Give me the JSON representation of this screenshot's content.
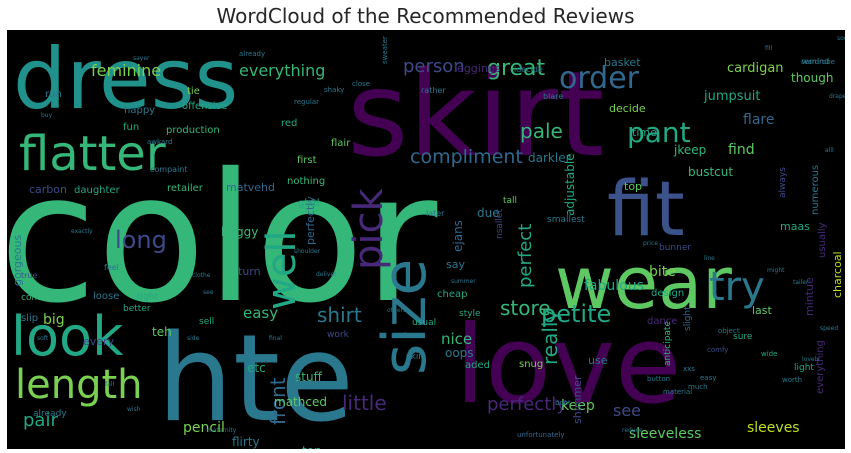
{
  "chart_data": {
    "type": "wordcloud",
    "title": "WordCloud of the Recommended Reviews",
    "background": "#000000",
    "palette": "viridis",
    "words": [
      {
        "text": "color",
        "color": "#35b779"
      },
      {
        "text": "skirt",
        "color": "#440154"
      },
      {
        "text": "hte",
        "color": "#2a788e"
      },
      {
        "text": "love",
        "color": "#440154"
      },
      {
        "text": "dress",
        "color": "#21918c"
      },
      {
        "text": "fit",
        "color": "#3b528b"
      },
      {
        "text": "wear",
        "color": "#5ec962"
      },
      {
        "text": "flatter",
        "color": "#35b779"
      },
      {
        "text": "look",
        "color": "#22a884"
      },
      {
        "text": "length",
        "color": "#7ad151"
      },
      {
        "text": "size",
        "color": "#2a788e"
      },
      {
        "text": "pick",
        "color": "#482878"
      },
      {
        "text": "try",
        "color": "#2a788e"
      },
      {
        "text": "well",
        "color": "#22a884"
      },
      {
        "text": "order",
        "color": "#31688e"
      },
      {
        "text": "pant",
        "color": "#22a884"
      },
      {
        "text": "long",
        "color": "#3e4a89"
      },
      {
        "text": "petite",
        "color": "#22a884"
      },
      {
        "text": "pale",
        "color": "#35b779"
      },
      {
        "text": "great",
        "color": "#35b779"
      },
      {
        "text": "compliment",
        "color": "#31688e"
      },
      {
        "text": "front",
        "color": "#31688e"
      },
      {
        "text": "shirt",
        "color": "#2a788e"
      },
      {
        "text": "store",
        "color": "#35b779"
      },
      {
        "text": "really",
        "color": "#22a884"
      },
      {
        "text": "little",
        "color": "#482878"
      },
      {
        "text": "perfectly",
        "color": "#482878"
      },
      {
        "text": "pair",
        "color": "#22a884"
      },
      {
        "text": "person",
        "color": "#3e4a89"
      },
      {
        "text": "everything",
        "color": "#35b779"
      },
      {
        "text": "feminine",
        "color": "#7ad151"
      },
      {
        "text": "perfect",
        "color": "#22a884"
      },
      {
        "text": "nice",
        "color": "#35b779"
      },
      {
        "text": "easy",
        "color": "#35b779"
      },
      {
        "text": "see",
        "color": "#3e4a89"
      },
      {
        "text": "keep",
        "color": "#5ec962"
      },
      {
        "text": "pencil",
        "color": "#7ad151"
      },
      {
        "text": "big",
        "color": "#7ad151"
      },
      {
        "text": "sleeves",
        "color": "#bddf26"
      },
      {
        "text": "sleeveless",
        "color": "#5ec962"
      },
      {
        "text": "fabulous",
        "color": "#22a884"
      },
      {
        "text": "bite",
        "color": "#7ad151"
      },
      {
        "text": "find",
        "color": "#5ec962"
      },
      {
        "text": "flare",
        "color": "#31688e"
      },
      {
        "text": "jumpsuit",
        "color": "#22a884"
      },
      {
        "text": "cardigan",
        "color": "#7ad151"
      },
      {
        "text": "though",
        "color": "#5ec962"
      },
      {
        "text": "bustcut",
        "color": "#35b779"
      },
      {
        "text": "darkler",
        "color": "#2a788e"
      },
      {
        "text": "jkeep",
        "color": "#35b779"
      },
      {
        "text": "adjustable",
        "color": "#22a884"
      },
      {
        "text": "decide",
        "color": "#7ad151"
      },
      {
        "text": "basket",
        "color": "#2a788e"
      },
      {
        "text": "leggings",
        "color": "#482878"
      },
      {
        "text": "time",
        "color": "#22a884"
      },
      {
        "text": "top",
        "color": "#5ec962"
      },
      {
        "text": "maas",
        "color": "#22a884"
      },
      {
        "text": "last",
        "color": "#5ec962"
      },
      {
        "text": "charcoal",
        "color": "#bddf26"
      },
      {
        "text": "mintue",
        "color": "#482878"
      },
      {
        "text": "everything",
        "color": "#482878"
      },
      {
        "text": "shimmer",
        "color": "#3e4a89"
      },
      {
        "text": "use",
        "color": "#2a788e"
      },
      {
        "text": "aded",
        "color": "#22a884"
      },
      {
        "text": "snug",
        "color": "#7ad151"
      },
      {
        "text": "oops",
        "color": "#2a788e"
      },
      {
        "text": "stuff",
        "color": "#35b779"
      },
      {
        "text": "etc",
        "color": "#22a884"
      },
      {
        "text": "mathced",
        "color": "#5ec962"
      },
      {
        "text": "flirty",
        "color": "#2a788e"
      },
      {
        "text": "ton",
        "color": "#22a884"
      },
      {
        "text": "teh",
        "color": "#5ec962"
      },
      {
        "text": "every",
        "color": "#3e4a89"
      },
      {
        "text": "baggy",
        "color": "#35b779"
      },
      {
        "text": "turn",
        "color": "#3e4a89"
      },
      {
        "text": "gorgeous",
        "color": "#2a788e"
      },
      {
        "text": "carbon",
        "color": "#3e4a89"
      },
      {
        "text": "matvehd",
        "color": "#31688e"
      },
      {
        "text": "daughter",
        "color": "#22a884"
      },
      {
        "text": "retailer",
        "color": "#35b779"
      },
      {
        "text": "nothing",
        "color": "#35b779"
      },
      {
        "text": "fun",
        "color": "#22a884"
      },
      {
        "text": "happy",
        "color": "#2a788e"
      },
      {
        "text": "production",
        "color": "#35b779"
      },
      {
        "text": "offensive",
        "color": "#22a884"
      },
      {
        "text": "red",
        "color": "#22a884"
      },
      {
        "text": "run",
        "color": "#2a788e"
      },
      {
        "text": "tie",
        "color": "#7ad151"
      },
      {
        "text": "first",
        "color": "#5ec962"
      },
      {
        "text": "glad",
        "color": "#22a884"
      },
      {
        "text": "flair",
        "color": "#5ec962"
      },
      {
        "text": "due",
        "color": "#2a788e"
      },
      {
        "text": "perfectly",
        "color": "#31688e"
      },
      {
        "text": "ejans",
        "color": "#31688e"
      },
      {
        "text": "say",
        "color": "#2a788e"
      },
      {
        "text": "cheap",
        "color": "#22a884"
      },
      {
        "text": "dance",
        "color": "#482878"
      },
      {
        "text": "design",
        "color": "#22a884"
      },
      {
        "text": "usually",
        "color": "#482878"
      },
      {
        "text": "numerous",
        "color": "#2a788e"
      },
      {
        "text": "loose",
        "color": "#2a788e"
      },
      {
        "text": "slip",
        "color": "#2a788e"
      },
      {
        "text": "combo",
        "color": "#35b779"
      },
      {
        "text": "sell",
        "color": "#22a884"
      },
      {
        "text": "work",
        "color": "#3e4a89"
      },
      {
        "text": "usual",
        "color": "#22a884"
      },
      {
        "text": "style",
        "color": "#22a884"
      },
      {
        "text": "skin",
        "color": "#2a788e"
      },
      {
        "text": "light",
        "color": "#22a884"
      },
      {
        "text": "tall",
        "color": "#5ec962"
      },
      {
        "text": "always",
        "color": "#3e4a89"
      },
      {
        "text": "smallest",
        "color": "#2a788e"
      },
      {
        "text": "later",
        "color": "#2a788e"
      },
      {
        "text": "anticipate",
        "color": "#35b779"
      },
      {
        "text": "slight",
        "color": "#31688e"
      },
      {
        "text": "sure",
        "color": "#22a884"
      },
      {
        "text": "make",
        "color": "#2a788e"
      },
      {
        "text": "better",
        "color": "#22a884"
      },
      {
        "text": "tight",
        "color": "#22a884"
      },
      {
        "text": "already",
        "color": "#2a788e"
      },
      {
        "text": "feel",
        "color": "#2a788e"
      },
      {
        "text": "true",
        "color": "#3e4a89"
      },
      {
        "text": "remind",
        "color": "#2a788e"
      },
      {
        "text": "blare",
        "color": "#2a788e"
      },
      {
        "text": "rather",
        "color": "#2a788e"
      },
      {
        "text": "idecide",
        "color": "#2a788e"
      },
      {
        "text": "worth",
        "color": "#2a788e"
      },
      {
        "text": "wardrobe",
        "color": "#2a788e"
      },
      {
        "text": "unfortunately",
        "color": "#31688e"
      },
      {
        "text": "button",
        "color": "#2a788e"
      },
      {
        "text": "material",
        "color": "#2a788e"
      },
      {
        "text": "xxs",
        "color": "#2a788e"
      },
      {
        "text": "much",
        "color": "#2a788e"
      },
      {
        "text": "wide",
        "color": "#22a884"
      },
      {
        "text": "comfy",
        "color": "#3e4a89"
      },
      {
        "text": "object",
        "color": "#2a788e"
      },
      {
        "text": "boot",
        "color": "#2a788e"
      },
      {
        "text": "easy",
        "color": "#2a788e"
      },
      {
        "text": "sweater",
        "color": "#2a788e"
      },
      {
        "text": "close",
        "color": "#2a788e"
      },
      {
        "text": "shaky",
        "color": "#2a788e"
      },
      {
        "text": "bunner",
        "color": "#3e4a89"
      },
      {
        "text": "nsallet",
        "color": "#3e4a89"
      },
      {
        "text": "compaint",
        "color": "#2a788e"
      },
      {
        "text": "awkard",
        "color": "#2a788e"
      },
      {
        "text": "regular",
        "color": "#2a788e"
      },
      {
        "text": "already",
        "color": "#2a788e"
      },
      {
        "text": "sayer",
        "color": "#2a788e"
      },
      {
        "text": "buy",
        "color": "#2a788e"
      },
      {
        "text": "line",
        "color": "#2a788e"
      },
      {
        "text": "tailer",
        "color": "#2a788e"
      },
      {
        "text": "price",
        "color": "#2a788e"
      },
      {
        "text": "clothe",
        "color": "#2a788e"
      },
      {
        "text": "shoulder",
        "color": "#2a788e"
      },
      {
        "text": "soft",
        "color": "#2a788e"
      },
      {
        "text": "side",
        "color": "#2a788e"
      },
      {
        "text": "final",
        "color": "#2a788e"
      },
      {
        "text": "deliver",
        "color": "#2a788e"
      },
      {
        "text": "lovely",
        "color": "#2a788e"
      },
      {
        "text": "speed",
        "color": "#2a788e"
      },
      {
        "text": "exactly",
        "color": "#2a788e"
      },
      {
        "text": "might",
        "color": "#2a788e"
      },
      {
        "text": "others",
        "color": "#2a788e"
      },
      {
        "text": "summer",
        "color": "#2a788e"
      },
      {
        "text": "maternity",
        "color": "#2a788e"
      },
      {
        "text": "reduce",
        "color": "#2a788e"
      },
      {
        "text": "fall",
        "color": "#2a788e"
      },
      {
        "text": "see",
        "color": "#2a788e"
      },
      {
        "text": "wish",
        "color": "#2a788e"
      },
      {
        "text": "alll",
        "color": "#2a788e"
      },
      {
        "text": "drape",
        "color": "#2a788e"
      },
      {
        "text": "soo",
        "color": "#2a788e"
      },
      {
        "text": "fill",
        "color": "#2a788e"
      }
    ]
  }
}
